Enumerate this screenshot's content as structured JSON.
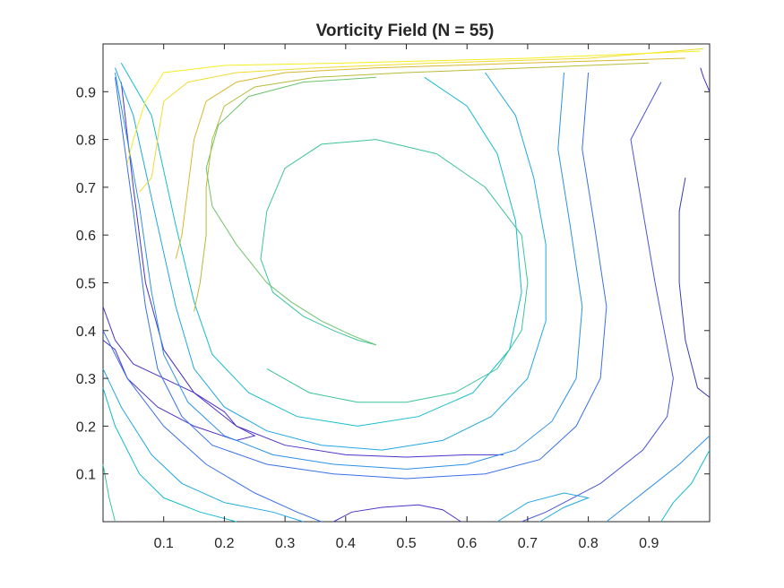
{
  "chart_data": {
    "type": "contour",
    "title": "Vorticity Field (N = 55)",
    "xlabel": "",
    "ylabel": "",
    "xlim": [
      0,
      1
    ],
    "ylim": [
      0,
      1
    ],
    "xticks": [
      "0.1",
      "0.2",
      "0.3",
      "0.4",
      "0.5",
      "0.6",
      "0.7",
      "0.8",
      "0.9"
    ],
    "yticks": [
      "0.1",
      "0.2",
      "0.3",
      "0.4",
      "0.5",
      "0.6",
      "0.7",
      "0.8",
      "0.9"
    ],
    "xtick_values": [
      0.1,
      0.2,
      0.3,
      0.4,
      0.5,
      0.6,
      0.7,
      0.8,
      0.9
    ],
    "ytick_values": [
      0.1,
      0.2,
      0.3,
      0.4,
      0.5,
      0.6,
      0.7,
      0.8,
      0.9
    ],
    "grid": false,
    "colormap": "parula",
    "contours": [
      {
        "color": "#4a33c8",
        "points": [
          [
            0.03,
            0.92
          ],
          [
            0.05,
            0.7
          ],
          [
            0.07,
            0.5
          ],
          [
            0.1,
            0.36
          ],
          [
            0.15,
            0.27
          ],
          [
            0.22,
            0.2
          ],
          [
            0.3,
            0.16
          ],
          [
            0.4,
            0.14
          ],
          [
            0.5,
            0.135
          ],
          [
            0.6,
            0.14
          ],
          [
            0.66,
            0.14
          ]
        ]
      },
      {
        "color": "#4a33c8",
        "points": [
          [
            0.0,
            0.45
          ],
          [
            0.02,
            0.38
          ],
          [
            0.05,
            0.33
          ],
          [
            0.1,
            0.3
          ],
          [
            0.15,
            0.27
          ],
          [
            0.2,
            0.23
          ],
          [
            0.22,
            0.2
          ],
          [
            0.25,
            0.18
          ],
          [
            0.22,
            0.17
          ],
          [
            0.15,
            0.2
          ],
          [
            0.09,
            0.24
          ],
          [
            0.04,
            0.3
          ],
          [
            0.02,
            0.36
          ],
          [
            0.0,
            0.38
          ]
        ]
      },
      {
        "color": "#4a33c8",
        "points": [
          [
            0.38,
            0.0
          ],
          [
            0.41,
            0.02
          ],
          [
            0.46,
            0.03
          ],
          [
            0.52,
            0.035
          ],
          [
            0.56,
            0.025
          ],
          [
            0.59,
            0.0
          ]
        ]
      },
      {
        "color": "#3a3ab8",
        "points": [
          [
            0.96,
            0.72
          ],
          [
            0.95,
            0.65
          ],
          [
            0.95,
            0.5
          ],
          [
            0.96,
            0.38
          ],
          [
            0.98,
            0.28
          ],
          [
            1.0,
            0.26
          ]
        ]
      },
      {
        "color": "#4a55d8",
        "points": [
          [
            0.92,
            0.92
          ],
          [
            0.87,
            0.8
          ],
          [
            0.89,
            0.65
          ],
          [
            0.91,
            0.5
          ],
          [
            0.94,
            0.3
          ],
          [
            0.93,
            0.22
          ],
          [
            0.89,
            0.15
          ],
          [
            0.82,
            0.08
          ],
          [
            0.73,
            0.02
          ],
          [
            0.69,
            0.0
          ]
        ]
      },
      {
        "color": "#3a70e8",
        "points": [
          [
            0.8,
            0.94
          ],
          [
            0.79,
            0.78
          ],
          [
            0.81,
            0.62
          ],
          [
            0.83,
            0.45
          ],
          [
            0.82,
            0.3
          ],
          [
            0.78,
            0.2
          ],
          [
            0.72,
            0.13
          ],
          [
            0.63,
            0.1
          ],
          [
            0.5,
            0.09
          ],
          [
            0.38,
            0.1
          ],
          [
            0.27,
            0.12
          ],
          [
            0.18,
            0.16
          ],
          [
            0.13,
            0.22
          ],
          [
            0.09,
            0.32
          ],
          [
            0.07,
            0.45
          ],
          [
            0.05,
            0.65
          ],
          [
            0.02,
            0.93
          ]
        ]
      },
      {
        "color": "#2c90e8",
        "points": [
          [
            0.76,
            0.94
          ],
          [
            0.75,
            0.78
          ],
          [
            0.77,
            0.62
          ],
          [
            0.79,
            0.45
          ],
          [
            0.78,
            0.3
          ],
          [
            0.74,
            0.21
          ],
          [
            0.68,
            0.15
          ],
          [
            0.6,
            0.12
          ],
          [
            0.5,
            0.11
          ],
          [
            0.38,
            0.12
          ],
          [
            0.28,
            0.14
          ],
          [
            0.2,
            0.18
          ],
          [
            0.14,
            0.25
          ],
          [
            0.1,
            0.35
          ],
          [
            0.08,
            0.48
          ],
          [
            0.06,
            0.66
          ],
          [
            0.02,
            0.94
          ]
        ]
      },
      {
        "color": "#1fa8e0",
        "points": [
          [
            0.63,
            0.94
          ],
          [
            0.68,
            0.85
          ],
          [
            0.71,
            0.72
          ],
          [
            0.73,
            0.58
          ],
          [
            0.73,
            0.42
          ],
          [
            0.7,
            0.3
          ],
          [
            0.64,
            0.22
          ],
          [
            0.56,
            0.17
          ],
          [
            0.46,
            0.15
          ],
          [
            0.36,
            0.16
          ],
          [
            0.27,
            0.19
          ],
          [
            0.2,
            0.24
          ],
          [
            0.15,
            0.32
          ],
          [
            0.12,
            0.45
          ],
          [
            0.09,
            0.62
          ],
          [
            0.05,
            0.85
          ],
          [
            0.02,
            0.95
          ]
        ]
      },
      {
        "color": "#14bccd",
        "points": [
          [
            0.53,
            0.93
          ],
          [
            0.6,
            0.87
          ],
          [
            0.65,
            0.77
          ],
          [
            0.68,
            0.63
          ],
          [
            0.69,
            0.48
          ],
          [
            0.67,
            0.36
          ],
          [
            0.61,
            0.27
          ],
          [
            0.52,
            0.22
          ],
          [
            0.42,
            0.2
          ],
          [
            0.32,
            0.22
          ],
          [
            0.24,
            0.27
          ],
          [
            0.18,
            0.35
          ],
          [
            0.15,
            0.46
          ],
          [
            0.12,
            0.62
          ],
          [
            0.08,
            0.85
          ],
          [
            0.03,
            0.96
          ]
        ]
      },
      {
        "color": "#3cc49a",
        "points": [
          [
            0.45,
            0.37
          ],
          [
            0.42,
            0.38
          ],
          [
            0.38,
            0.4
          ],
          [
            0.33,
            0.43
          ],
          [
            0.28,
            0.48
          ],
          [
            0.26,
            0.55
          ],
          [
            0.27,
            0.65
          ],
          [
            0.3,
            0.74
          ],
          [
            0.36,
            0.79
          ],
          [
            0.45,
            0.8
          ],
          [
            0.55,
            0.77
          ],
          [
            0.63,
            0.7
          ],
          [
            0.69,
            0.6
          ],
          [
            0.7,
            0.5
          ],
          [
            0.69,
            0.4
          ],
          [
            0.65,
            0.32
          ],
          [
            0.58,
            0.27
          ],
          [
            0.5,
            0.25
          ],
          [
            0.42,
            0.25
          ],
          [
            0.34,
            0.27
          ],
          [
            0.27,
            0.32
          ]
        ]
      },
      {
        "color": "#6cc46c",
        "points": [
          [
            0.45,
            0.93
          ],
          [
            0.33,
            0.92
          ],
          [
            0.24,
            0.89
          ],
          [
            0.19,
            0.83
          ],
          [
            0.17,
            0.74
          ],
          [
            0.18,
            0.66
          ],
          [
            0.22,
            0.58
          ],
          [
            0.27,
            0.5
          ],
          [
            0.31,
            0.46
          ],
          [
            0.36,
            0.42
          ],
          [
            0.41,
            0.39
          ],
          [
            0.45,
            0.37
          ]
        ]
      },
      {
        "color": "#b6bc3a",
        "points": [
          [
            0.9,
            0.96
          ],
          [
            0.7,
            0.95
          ],
          [
            0.5,
            0.94
          ],
          [
            0.35,
            0.93
          ],
          [
            0.25,
            0.91
          ],
          [
            0.2,
            0.87
          ],
          [
            0.18,
            0.8
          ],
          [
            0.17,
            0.7
          ],
          [
            0.17,
            0.6
          ],
          [
            0.16,
            0.5
          ],
          [
            0.15,
            0.44
          ]
        ]
      },
      {
        "color": "#d8b830",
        "points": [
          [
            0.96,
            0.97
          ],
          [
            0.7,
            0.96
          ],
          [
            0.45,
            0.95
          ],
          [
            0.3,
            0.94
          ],
          [
            0.22,
            0.92
          ],
          [
            0.17,
            0.88
          ],
          [
            0.15,
            0.8
          ],
          [
            0.14,
            0.7
          ],
          [
            0.13,
            0.6
          ],
          [
            0.12,
            0.55
          ]
        ]
      },
      {
        "color": "#f0dc30",
        "points": [
          [
            0.99,
            0.99
          ],
          [
            0.8,
            0.97
          ],
          [
            0.55,
            0.96
          ],
          [
            0.35,
            0.95
          ],
          [
            0.22,
            0.94
          ],
          [
            0.14,
            0.92
          ],
          [
            0.1,
            0.88
          ],
          [
            0.09,
            0.8
          ],
          [
            0.08,
            0.72
          ],
          [
            0.06,
            0.69
          ]
        ]
      },
      {
        "color": "#f5ee20",
        "points": [
          [
            0.985,
            0.985
          ],
          [
            0.7,
            0.97
          ],
          [
            0.4,
            0.96
          ],
          [
            0.2,
            0.955
          ],
          [
            0.1,
            0.94
          ],
          [
            0.07,
            0.88
          ],
          [
            0.05,
            0.8
          ],
          [
            0.04,
            0.75
          ]
        ]
      },
      {
        "color": "#4a33c8",
        "points": [
          [
            1.0,
            0.9
          ],
          [
            0.99,
            0.93
          ],
          [
            0.985,
            0.95
          ]
        ]
      },
      {
        "color": "#2c90e8",
        "points": [
          [
            1.0,
            0.18
          ],
          [
            0.95,
            0.12
          ],
          [
            0.9,
            0.07
          ],
          [
            0.86,
            0.03
          ],
          [
            0.83,
            0.0
          ]
        ]
      },
      {
        "color": "#14bccd",
        "points": [
          [
            1.0,
            0.15
          ],
          [
            0.97,
            0.08
          ],
          [
            0.94,
            0.04
          ],
          [
            0.92,
            0.0
          ]
        ]
      },
      {
        "color": "#1fa8e0",
        "points": [
          [
            0.0,
            0.32
          ],
          [
            0.03,
            0.24
          ],
          [
            0.08,
            0.14
          ],
          [
            0.13,
            0.08
          ],
          [
            0.2,
            0.04
          ],
          [
            0.28,
            0.02
          ],
          [
            0.33,
            0.0
          ]
        ]
      },
      {
        "color": "#14bccd",
        "points": [
          [
            0.0,
            0.28
          ],
          [
            0.02,
            0.2
          ],
          [
            0.06,
            0.1
          ],
          [
            0.1,
            0.05
          ],
          [
            0.16,
            0.02
          ],
          [
            0.22,
            0.0
          ]
        ]
      },
      {
        "color": "#3a70e8",
        "points": [
          [
            0.0,
            0.4
          ],
          [
            0.04,
            0.3
          ],
          [
            0.1,
            0.2
          ],
          [
            0.17,
            0.12
          ],
          [
            0.25,
            0.06
          ],
          [
            0.32,
            0.02
          ],
          [
            0.36,
            0.0
          ]
        ]
      },
      {
        "color": "#3cc49a",
        "points": [
          [
            0.0,
            0.12
          ],
          [
            0.01,
            0.05
          ],
          [
            0.02,
            0.0
          ]
        ]
      },
      {
        "color": "#1fa8e0",
        "points": [
          [
            0.65,
            0.0
          ],
          [
            0.7,
            0.04
          ],
          [
            0.76,
            0.06
          ],
          [
            0.8,
            0.05
          ],
          [
            0.76,
            0.03
          ],
          [
            0.72,
            0.0
          ]
        ]
      }
    ]
  }
}
